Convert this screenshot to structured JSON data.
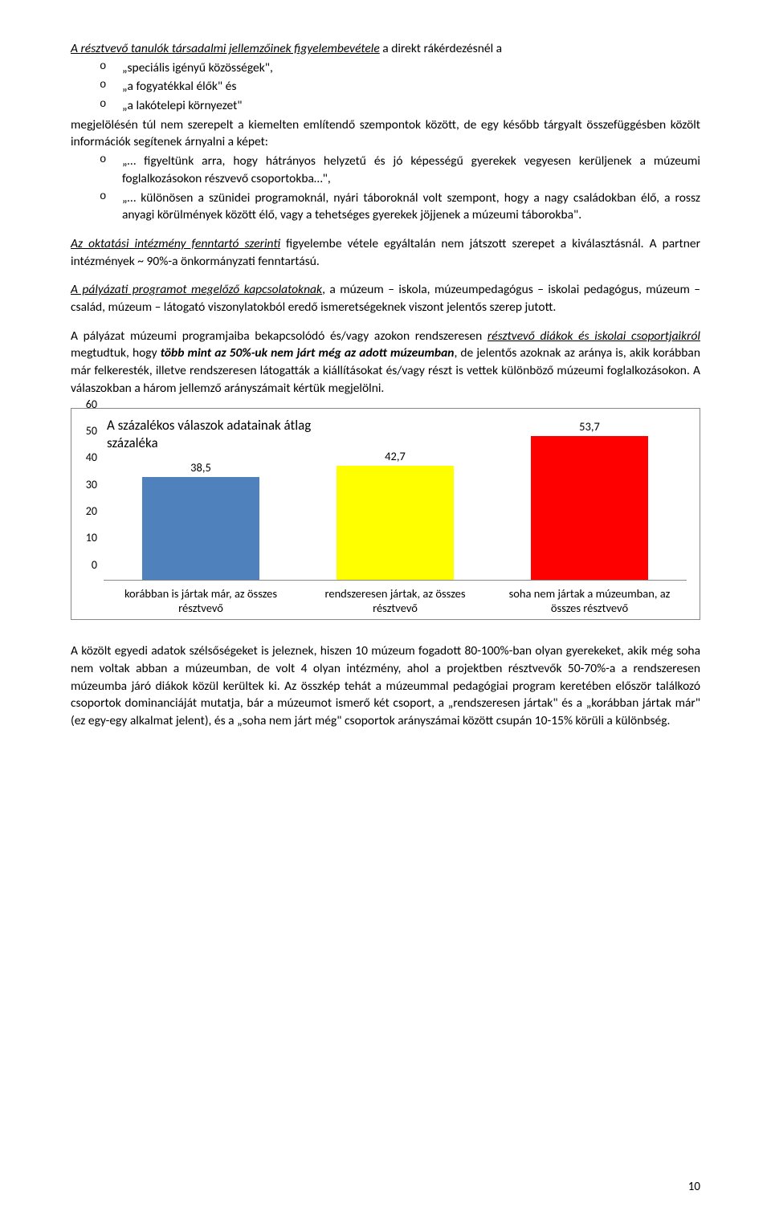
{
  "intro": {
    "lead_underlined_italic": "A résztvevő tanulók társadalmi jellemzőinek figyelembevétele",
    "lead_rest": " a direkt rákérdezésnél a",
    "bullets_a": [
      "„speciális igényű közösségek\",",
      "„a fogyatékkal élők\" és",
      "„a lakótelepi környezet\""
    ],
    "mid": "megjelölésén túl nem szerepelt a kiemelten említendő szempontok között, de egy később tárgyalt összefüggésben közölt információk segítenek árnyalni a képet:",
    "bullets_b": [
      "„… figyeltünk arra, hogy hátrányos helyzetű és jó képességű gyerekek vegyesen kerüljenek a múzeumi foglalkozásokon részvevő csoportokba…\",",
      "„… különösen a szünidei programoknál, nyári táboroknál volt szempont, hogy a nagy családokban élő, a rossz anyagi körülmények között élő, vagy a tehetséges gyerekek jöjjenek a múzeumi táborokba\"."
    ]
  },
  "p2": {
    "underlined_italic": "Az oktatási intézmény fenntartó szerinti",
    "rest": " figyelembe vétele egyáltalán nem játszott szerepet a kiválasztásnál. A partner intézmények ~ 90%-a önkormányzati fenntartású."
  },
  "p3": {
    "underlined_italic": "A pályázati programot megelőző kapcsolatoknak",
    "rest": ", a múzeum – iskola, múzeumpedagógus – iskolai pedagógus, múzeum – család, múzeum – látogató viszonylatokból eredő ismeretségeknek viszont jelentős szerep jutott."
  },
  "p4": {
    "text_a": "A pályázat múzeumi programjaiba bekapcsolódó és/vagy azokon rendszeresen ",
    "underlined_italic": "résztvevő diákok és iskolai csoportjaikról",
    "text_b": " megtudtuk, hogy ",
    "bold_italic": "több mint az 50%-uk nem járt még az adott múzeumban",
    "text_c": ", de jelentős azoknak az aránya is, akik korábban már felkeresték, illetve rendszeresen látogatták a kiállításokat és/vagy részt is vettek különböző múzeumi foglalkozásokon. A válaszokban a három jellemző arányszámait kértük megjelölni."
  },
  "chart": {
    "title": "A százalékos válaszok adatainak átlag százaléka",
    "ymax": 60,
    "ytick_step": 10,
    "categories": [
      "korábban is jártak már, az összes résztvevő",
      "rendszeresen jártak, az összes résztvevő",
      "soha nem jártak a múzeumban, az összes résztvevő"
    ],
    "values": [
      38.5,
      42.7,
      53.7
    ],
    "value_labels": [
      "38,5",
      "42,7",
      "53,7"
    ],
    "bar_colors": [
      "#4f81bd",
      "#ffff00",
      "#ff0000"
    ],
    "axis_color": "#888888",
    "background": "#ffffff"
  },
  "p5": "A közölt egyedi adatok szélsőségeket is jeleznek, hiszen 10 múzeum fogadott 80-100%-ban olyan gyerekeket, akik még soha nem voltak abban a múzeumban, de volt 4 olyan intézmény, ahol a projektben résztvevők 50-70%-a a rendszeresen múzeumba járó diákok közül kerültek ki. Az összkép tehát a múzeummal pedagógiai program keretében először találkozó csoportok dominanciáját mutatja, bár a múzeumot ismerő két csoport, a „rendszeresen jártak\" és a „korábban jártak már\" (ez egy-egy alkalmat jelent), és a „soha nem járt még\" csoportok arányszámai között csupán 10-15% körüli a különbség.",
  "page_number": "10"
}
